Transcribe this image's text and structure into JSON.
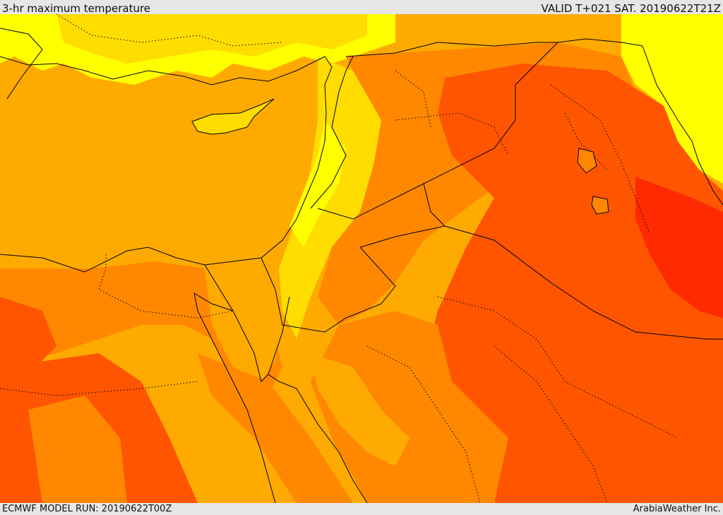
{
  "header": {
    "title": "3-hr maximum temperature",
    "valid": "VALID T+021 SAT. 20190622T21Z"
  },
  "footer": {
    "model_run": "ECMWF MODEL RUN: 20190622T00Z",
    "credit": "ArabiaWeather Inc."
  },
  "colors": {
    "sea": "#ffaa00",
    "cool": "#ffff00",
    "mild": "#ffdd00",
    "warm": "#ff8800",
    "hot": "#ff5500",
    "hottest": "#ff2a00",
    "border": "#000000"
  }
}
